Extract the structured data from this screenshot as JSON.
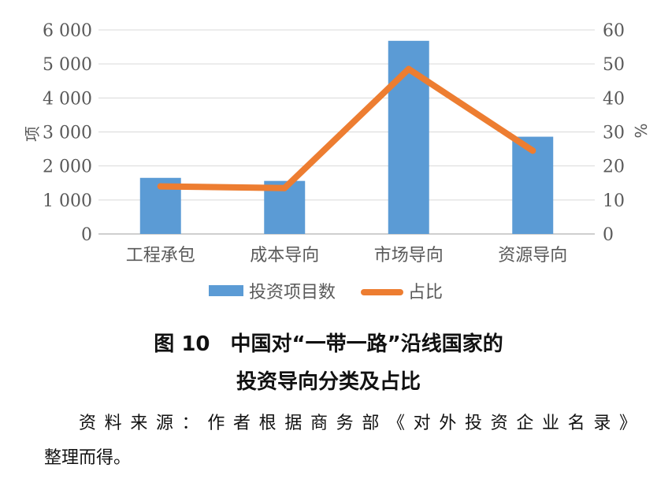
{
  "chart_data": {
    "type": "bar+line",
    "categories": [
      "工程承包",
      "成本导向",
      "市场导向",
      "资源导向"
    ],
    "series": [
      {
        "name": "投资项目数",
        "type": "bar",
        "axis": "left",
        "color": "#5B9BD5",
        "values": [
          1650,
          1560,
          5680,
          2860
        ]
      },
      {
        "name": "占比",
        "type": "line",
        "axis": "right",
        "color": "#ED7D31",
        "values": [
          14,
          13.5,
          48.5,
          24.5
        ]
      }
    ],
    "left_axis": {
      "label": "项",
      "ylim": [
        0,
        6000
      ],
      "ticks": [
        0,
        1000,
        2000,
        3000,
        4000,
        5000,
        6000
      ],
      "tick_labels": [
        "0",
        "1 000",
        "2 000",
        "3 000",
        "4 000",
        "5 000",
        "6 000"
      ]
    },
    "right_axis": {
      "label": "%",
      "ylim": [
        0,
        60
      ],
      "ticks": [
        0,
        10,
        20,
        30,
        40,
        50,
        60
      ],
      "tick_labels": [
        "0",
        "10",
        "20",
        "30",
        "40",
        "50",
        "60"
      ]
    },
    "grid": true,
    "legend_position": "bottom"
  },
  "caption": {
    "line1": "图 10　中国对“一带一路”沿线国家的",
    "line2": "投资导向分类及占比"
  },
  "source": {
    "line1": "资料来源：作者根据商务部《对外投资企业名录》",
    "line2": "整理而得。"
  }
}
